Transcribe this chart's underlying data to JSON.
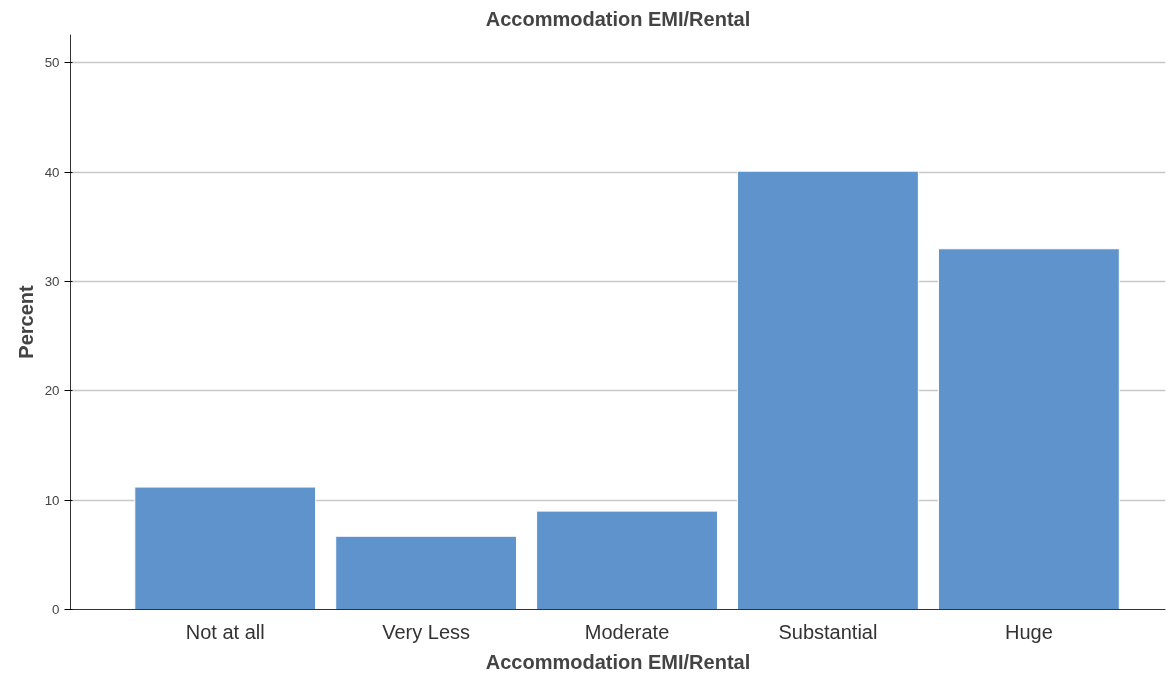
{
  "chart_data": {
    "type": "bar",
    "title": "Accommodation EMI/Rental",
    "xlabel": "Accommodation EMI/Rental",
    "ylabel": "Percent",
    "categories": [
      "Not at all",
      "Very Less",
      "Moderate",
      "Substantial",
      "Huge"
    ],
    "values": [
      11.2,
      6.7,
      9.0,
      40.1,
      33.0
    ],
    "color": "#5f93cc",
    "ylim": [
      0,
      52.6
    ],
    "yticks": [
      0,
      10,
      20,
      30,
      40,
      50
    ],
    "grid": "y"
  }
}
